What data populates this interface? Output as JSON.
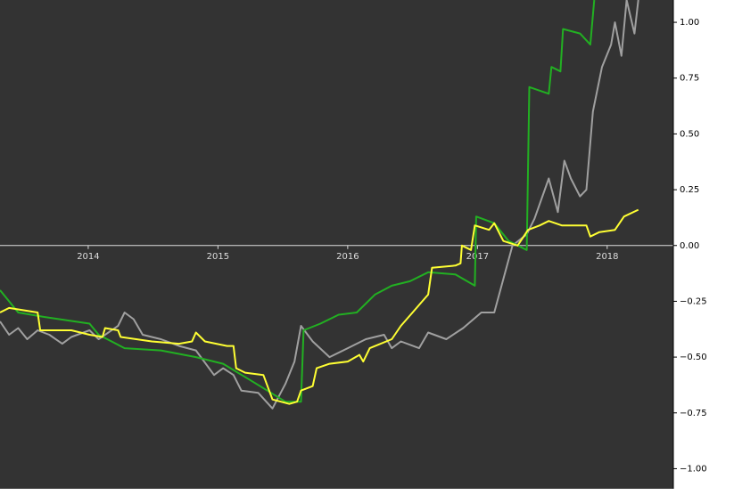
{
  "chart_data": {
    "type": "line",
    "xlim": [
      2013.32,
      2018.51
    ],
    "xticks": [
      2014,
      2015,
      2016,
      2017,
      2018
    ],
    "ylim": [
      -1.09,
      1.1
    ],
    "yticks": [
      {
        "value": -1,
        "label": "−1.00"
      },
      {
        "value": -0.75,
        "label": "−0.75"
      },
      {
        "value": -0.5,
        "label": "−0.50"
      },
      {
        "value": -0.25,
        "label": "−0.25"
      },
      {
        "value": 0,
        "label": "0.00"
      },
      {
        "value": 0.25,
        "label": "0.25"
      },
      {
        "value": 0.5,
        "label": "0.50"
      },
      {
        "value": 0.75,
        "label": "0.75"
      },
      {
        "value": 1,
        "label": "1.00"
      }
    ],
    "series": [
      {
        "color": "#a0a0a0",
        "x": [
          2013.32,
          2013.39,
          2013.46,
          2013.53,
          2013.61,
          2013.7,
          2013.8,
          2013.87,
          2014.01,
          2014.08,
          2014.23,
          2014.28,
          2014.35,
          2014.42,
          2014.56,
          2014.7,
          2014.83,
          2014.97,
          2015.04,
          2015.12,
          2015.18,
          2015.31,
          2015.42,
          2015.52,
          2015.59,
          2015.64,
          2015.73,
          2015.86,
          2016.0,
          2016.14,
          2016.28,
          2016.34,
          2016.41,
          2016.55,
          2016.62,
          2016.76,
          2016.89,
          2017.03,
          2017.13,
          2017.2,
          2017.27,
          2017.38,
          2017.44,
          2017.55,
          2017.62,
          2017.67,
          2017.72,
          2017.79,
          2017.84,
          2017.89,
          2017.96,
          2018.03,
          2018.06,
          2018.11,
          2018.15,
          2018.21,
          2018.24
        ],
        "values": [
          -0.34,
          -0.4,
          -0.37,
          -0.42,
          -0.38,
          -0.4,
          -0.44,
          -0.41,
          -0.38,
          -0.42,
          -0.36,
          -0.3,
          -0.33,
          -0.4,
          -0.42,
          -0.45,
          -0.47,
          -0.58,
          -0.55,
          -0.58,
          -0.65,
          -0.66,
          -0.73,
          -0.62,
          -0.52,
          -0.36,
          -0.43,
          -0.5,
          -0.46,
          -0.42,
          -0.4,
          -0.46,
          -0.43,
          -0.46,
          -0.39,
          -0.42,
          -0.37,
          -0.3,
          -0.3,
          -0.15,
          0.0,
          0.05,
          0.12,
          0.3,
          0.15,
          0.38,
          0.3,
          0.22,
          0.25,
          0.6,
          0.8,
          0.9,
          1.0,
          0.85,
          1.1,
          0.95,
          1.1
        ]
      },
      {
        "color": "#22b022",
        "x": [
          2013.32,
          2013.46,
          2013.66,
          2014.01,
          2014.08,
          2014.28,
          2014.56,
          2014.83,
          2015.04,
          2015.24,
          2015.38,
          2015.52,
          2015.64,
          2015.66,
          2015.79,
          2015.93,
          2016.07,
          2016.21,
          2016.34,
          2016.48,
          2016.62,
          2016.83,
          2016.98,
          2016.99,
          2017.13,
          2017.24,
          2017.38,
          2017.4,
          2017.55,
          2017.57,
          2017.64,
          2017.66,
          2017.79,
          2017.87,
          2017.9
        ],
        "values": [
          -0.2,
          -0.3,
          -0.32,
          -0.35,
          -0.4,
          -0.46,
          -0.47,
          -0.5,
          -0.53,
          -0.6,
          -0.65,
          -0.7,
          -0.7,
          -0.38,
          -0.35,
          -0.31,
          -0.3,
          -0.22,
          -0.18,
          -0.16,
          -0.12,
          -0.13,
          -0.18,
          0.13,
          0.1,
          0.02,
          -0.02,
          0.71,
          0.68,
          0.8,
          0.78,
          0.97,
          0.95,
          0.9,
          1.1
        ]
      },
      {
        "color": "#ffff33",
        "x": [
          2013.32,
          2013.39,
          2013.61,
          2013.63,
          2013.87,
          2014.01,
          2014.11,
          2014.13,
          2014.23,
          2014.25,
          2014.49,
          2014.7,
          2014.8,
          2014.83,
          2014.9,
          2015.07,
          2015.12,
          2015.14,
          2015.21,
          2015.35,
          2015.42,
          2015.55,
          2015.61,
          2015.64,
          2015.73,
          2015.76,
          2015.86,
          2016.0,
          2016.09,
          2016.12,
          2016.17,
          2016.34,
          2016.41,
          2016.5,
          2016.59,
          2016.62,
          2016.65,
          2016.83,
          2016.87,
          2016.88,
          2016.95,
          2016.98,
          2017.09,
          2017.13,
          2017.2,
          2017.31,
          2017.39,
          2017.48,
          2017.55,
          2017.65,
          2017.84,
          2017.87,
          2017.94,
          2018.06,
          2018.13,
          2018.24
        ],
        "values": [
          -0.3,
          -0.28,
          -0.3,
          -0.38,
          -0.38,
          -0.4,
          -0.41,
          -0.37,
          -0.38,
          -0.41,
          -0.43,
          -0.44,
          -0.43,
          -0.39,
          -0.43,
          -0.45,
          -0.45,
          -0.55,
          -0.57,
          -0.58,
          -0.69,
          -0.71,
          -0.7,
          -0.65,
          -0.63,
          -0.55,
          -0.53,
          -0.52,
          -0.49,
          -0.52,
          -0.46,
          -0.42,
          -0.36,
          -0.3,
          -0.24,
          -0.22,
          -0.1,
          -0.09,
          -0.08,
          0.0,
          -0.02,
          0.09,
          0.07,
          0.1,
          0.02,
          0.0,
          0.07,
          0.09,
          0.11,
          0.09,
          0.09,
          0.04,
          0.06,
          0.07,
          0.13,
          0.16
        ]
      }
    ]
  }
}
